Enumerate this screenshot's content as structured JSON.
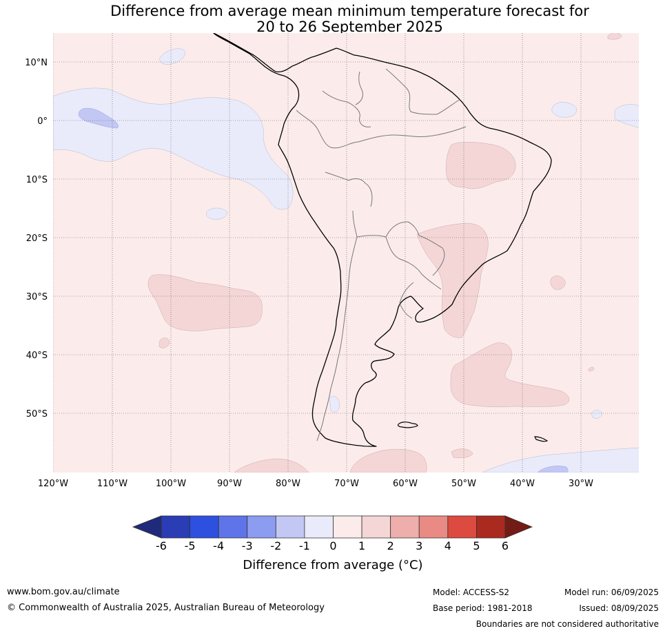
{
  "title": {
    "line1": "Difference from average mean minimum temperature forecast for",
    "line2": "20 to 26 September 2025"
  },
  "map": {
    "lat_labels": [
      "10°N",
      "0°",
      "10°S",
      "20°S",
      "30°S",
      "40°S",
      "50°S"
    ],
    "lon_labels": [
      "120°W",
      "110°W",
      "100°W",
      "90°W",
      "80°W",
      "70°W",
      "60°W",
      "50°W",
      "40°W",
      "30°W"
    ],
    "background_anomaly_class": "0 to 1",
    "colors": {
      "ocean_0_1": "#fbeceb",
      "warm_1_2": "#f5d6d6",
      "cool_m1_0": "#e9ebfb",
      "cool_m2_m1": "#c2c8f3",
      "gridline": "#555555",
      "coastline": "#000000",
      "borders": "#777777"
    }
  },
  "colorbar": {
    "ticks": [
      "-6",
      "-5",
      "-4",
      "-3",
      "-2",
      "-1",
      "0",
      "1",
      "2",
      "3",
      "4",
      "5",
      "6"
    ],
    "colors": [
      "#1f2a7a",
      "#2a3db4",
      "#2e50e0",
      "#5e74e8",
      "#8c9cf0",
      "#c2c8f3",
      "#e9ebfb",
      "#fbeceb",
      "#f5d6d6",
      "#eeaeab",
      "#e98a84",
      "#dd4a40",
      "#aa2a20",
      "#731b15"
    ],
    "label": "Difference from average (°C)"
  },
  "footer": {
    "website": "www.bom.gov.au/climate",
    "copyright": "© Commonwealth of Australia 2025, Australian Bureau of Meteorology",
    "model": "Model: ACCESS-S2",
    "base_period": "Base period: 1981-2018",
    "model_run": "Model run: 06/09/2025",
    "issued": "Issued: 08/09/2025",
    "disclaimer": "Boundaries are not considered authoritative"
  }
}
